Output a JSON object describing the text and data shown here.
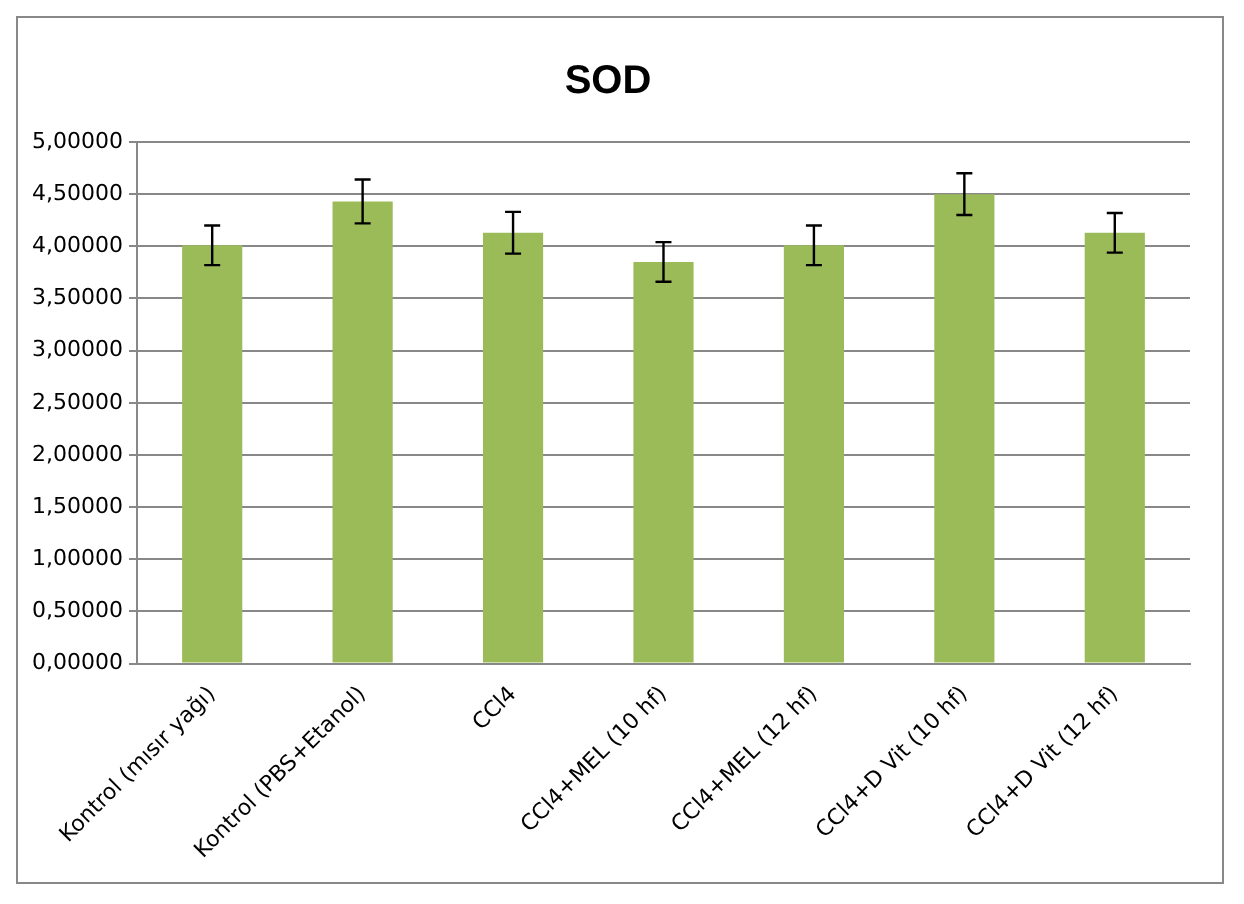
{
  "chart_data": {
    "type": "bar",
    "title": "SOD",
    "categories": [
      "Kontrol (mısır yağı)",
      "Kontrol (PBS+Etanol)",
      "CCl4",
      "CCl4+MEL (10 hf)",
      "CCl4+MEL (12 hf)",
      "CCl4+D Vit (10 hf)",
      "CCl4+D Vit (12 hf)"
    ],
    "values": [
      4.01,
      4.43,
      4.13,
      3.85,
      4.01,
      4.5,
      4.13
    ],
    "errors": [
      0.19,
      0.21,
      0.2,
      0.19,
      0.19,
      0.2,
      0.19
    ],
    "color": "#9bbb59",
    "ylim": [
      0,
      5
    ],
    "yticks": [
      {
        "value": 0,
        "label": "0,00000"
      },
      {
        "value": 0.5,
        "label": "0,50000"
      },
      {
        "value": 1,
        "label": "1,00000"
      },
      {
        "value": 1.5,
        "label": "1,50000"
      },
      {
        "value": 2,
        "label": "2,00000"
      },
      {
        "value": 2.5,
        "label": "2,50000"
      },
      {
        "value": 3,
        "label": "3,00000"
      },
      {
        "value": 3.5,
        "label": "3,50000"
      },
      {
        "value": 4,
        "label": "4,00000"
      },
      {
        "value": 4.5,
        "label": "4,50000"
      },
      {
        "value": 5,
        "label": "5,00000"
      }
    ],
    "grid": "y"
  }
}
